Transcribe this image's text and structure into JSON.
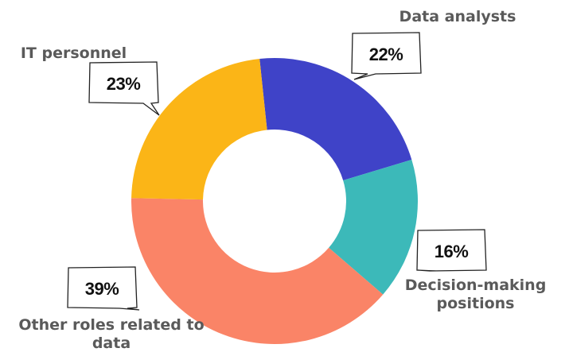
{
  "chart_data": {
    "type": "donut",
    "categories": [
      "Data analysts",
      "Decision-making positions",
      "Other roles related to data",
      "IT personnel"
    ],
    "values": [
      22,
      16,
      39,
      23
    ],
    "value_labels": [
      "22%",
      "16%",
      "39%",
      "23%"
    ],
    "colors": [
      "#3f43c8",
      "#3cb9b9",
      "#fa8467",
      "#fbb517"
    ]
  }
}
